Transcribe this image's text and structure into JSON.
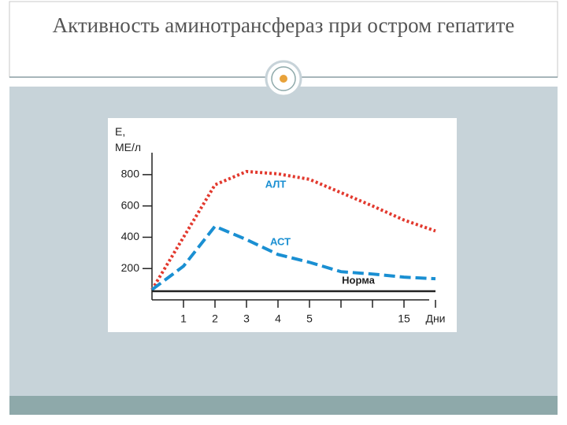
{
  "chart_data": {
    "type": "line",
    "title": "Активность аминотрансфераз при остром гепатите",
    "y_label": "Е, МЕ/л",
    "x_label": "Дни",
    "categories": [
      null,
      "1",
      "2",
      "3",
      "4",
      "5",
      null,
      null,
      "15",
      null
    ],
    "ylim": [
      0,
      900
    ],
    "yticks": [
      200,
      400,
      600,
      800
    ],
    "series": [
      {
        "name": "АЛТ",
        "color": "#e2392e",
        "style": "dotted",
        "values": [
          65,
          400,
          735,
          820,
          805,
          770,
          685,
          600,
          510,
          440
        ]
      },
      {
        "name": "АСТ",
        "color": "#1a8fd2",
        "style": "dashed",
        "values": [
          65,
          215,
          470,
          385,
          290,
          240,
          180,
          165,
          145,
          135
        ]
      },
      {
        "name": "Норма",
        "color": "#222222",
        "style": "solid",
        "values": [
          55,
          55,
          55,
          55,
          55,
          55,
          55,
          55,
          55,
          55
        ]
      }
    ]
  }
}
